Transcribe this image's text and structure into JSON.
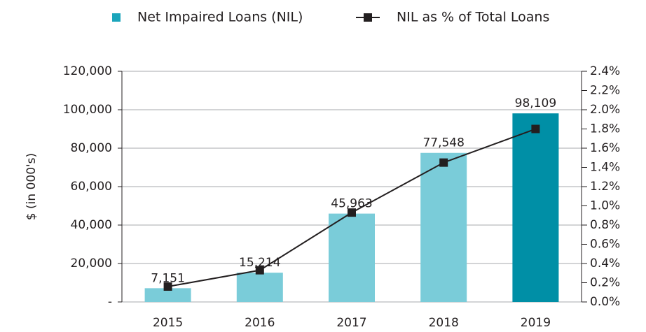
{
  "chart_data": {
    "type": "bar_line",
    "y_label": "$ (in 000's)",
    "categories": [
      "2015",
      "2016",
      "2017",
      "2018",
      "2019"
    ],
    "series": [
      {
        "name": "Net Impaired Loans (NIL)",
        "type": "bar",
        "color": "#1ba5bb",
        "colors": [
          "#7accd9",
          "#7accd9",
          "#7accd9",
          "#7accd9",
          "#008fa6"
        ],
        "values": [
          7151,
          15214,
          45963,
          77548,
          98109
        ],
        "value_labels": [
          "7,151",
          "15,214",
          "45,963",
          "77,548",
          "98,109"
        ]
      },
      {
        "name": "NIL as % of Total Loans",
        "type": "line",
        "axis": "y2",
        "color": "#231f20",
        "values": [
          0.16,
          0.33,
          0.93,
          1.45,
          1.8
        ]
      }
    ],
    "ylim": [
      0,
      120000
    ],
    "yticks": [
      {
        "value": 0,
        "label": "-"
      },
      {
        "value": 20000,
        "label": "20,000"
      },
      {
        "value": 40000,
        "label": "40,000"
      },
      {
        "value": 60000,
        "label": "60,000"
      },
      {
        "value": 80000,
        "label": "80,000"
      },
      {
        "value": 100000,
        "label": "100,000"
      },
      {
        "value": 120000,
        "label": "120,000"
      }
    ],
    "y2lim": [
      0,
      2.4
    ],
    "y2ticks": [
      {
        "value": 0,
        "label": "0.0%"
      },
      {
        "value": 0.2,
        "label": "0.2%"
      },
      {
        "value": 0.4,
        "label": "0.4%"
      },
      {
        "value": 0.6,
        "label": "0.6%"
      },
      {
        "value": 0.8,
        "label": "0.8%"
      },
      {
        "value": 1.0,
        "label": "1.0%"
      },
      {
        "value": 1.2,
        "label": "1.2%"
      },
      {
        "value": 1.4,
        "label": "1.4%"
      },
      {
        "value": 1.6,
        "label": "1.6%"
      },
      {
        "value": 1.8,
        "label": "1.8%"
      },
      {
        "value": 2.0,
        "label": "2.0%"
      },
      {
        "value": 2.2,
        "label": "2.2%"
      },
      {
        "value": 2.4,
        "label": "2.4%"
      }
    ],
    "grid": true,
    "legend": "top"
  }
}
